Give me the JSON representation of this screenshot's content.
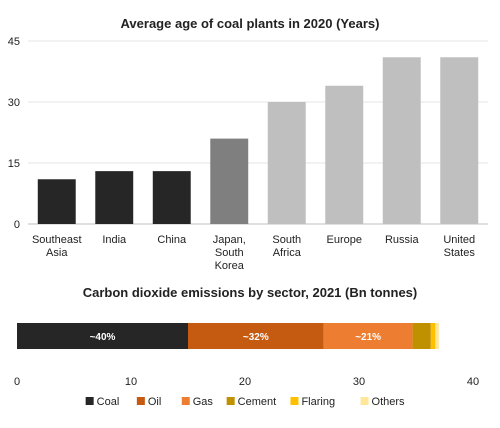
{
  "chart_data": [
    {
      "type": "bar",
      "title": "Average age of coal plants in 2020 (Years)",
      "categories": [
        [
          "Southeast",
          "Asia"
        ],
        [
          "India"
        ],
        [
          "China"
        ],
        [
          "Japan,",
          "South",
          "Korea"
        ],
        [
          "South",
          "Africa"
        ],
        [
          "Europe"
        ],
        [
          "Russia"
        ],
        [
          "United",
          "States"
        ]
      ],
      "values": [
        11,
        13,
        13,
        21,
        30,
        34,
        41,
        41
      ],
      "colors": [
        "#262626",
        "#262626",
        "#262626",
        "#7f7f7f",
        "#bfbfbf",
        "#bfbfbf",
        "#bfbfbf",
        "#bfbfbf"
      ],
      "ylim": [
        0,
        45
      ],
      "yticks": [
        0,
        15,
        30,
        45
      ],
      "grid": true
    },
    {
      "type": "bar",
      "orientation": "horizontal",
      "stacked": true,
      "title": "Carbon dioxide emissions by sector, 2021 (Bn tonnes)",
      "xlim": [
        0,
        40
      ],
      "xticks": [
        0,
        10,
        20,
        30,
        40
      ],
      "legend_position": "bottom",
      "series": [
        {
          "name": "Coal",
          "value": 15.0,
          "label": "~40%",
          "color": "#262626"
        },
        {
          "name": "Oil",
          "value": 11.9,
          "label": "~32%",
          "color": "#c55a11"
        },
        {
          "name": "Gas",
          "value": 7.8,
          "label": "~21%",
          "color": "#ed7d31"
        },
        {
          "name": "Cement",
          "value": 1.6,
          "label": "",
          "color": "#bf9000"
        },
        {
          "name": "Flaring",
          "value": 0.4,
          "label": "",
          "color": "#ffc000"
        },
        {
          "name": "Others",
          "value": 0.3,
          "label": "",
          "color": "#ffe699"
        }
      ]
    }
  ]
}
